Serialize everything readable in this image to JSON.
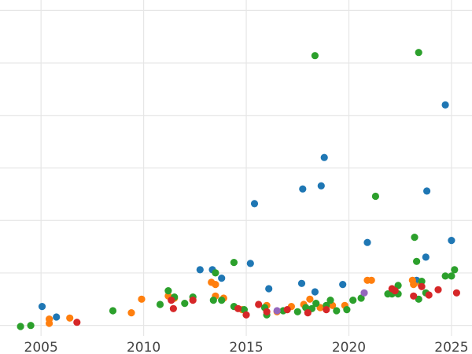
{
  "chart_data": {
    "type": "scatter",
    "title": "",
    "xlabel": "",
    "ylabel": "",
    "xlim": [
      2003.0,
      2026.0
    ],
    "ylim": [
      -1.0,
      31.0
    ],
    "x_ticks": [
      2005,
      2010,
      2015,
      2020,
      2025
    ],
    "x_tick_labels": [
      "2005",
      "2010",
      "2015",
      "2020",
      "2025"
    ],
    "y_gridlines": [
      0,
      5,
      10,
      15,
      20,
      25,
      30
    ],
    "y_tick_labels_visible": false,
    "grid": true,
    "legend": "none",
    "colors": {
      "blue": "#1f77b4",
      "orange": "#ff7f0e",
      "green": "#2ca02c",
      "red": "#d62728",
      "purple": "#9467bd"
    },
    "series": [
      {
        "color": "#1f77b4",
        "points": [
          [
            2005.05,
            1.8
          ],
          [
            2005.75,
            0.8
          ],
          [
            2012.75,
            5.3
          ],
          [
            2013.35,
            5.3
          ],
          [
            2013.8,
            4.5
          ],
          [
            2015.2,
            5.9
          ],
          [
            2015.4,
            11.6
          ],
          [
            2016.1,
            3.5
          ],
          [
            2017.7,
            4.0
          ],
          [
            2017.75,
            13.0
          ],
          [
            2018.35,
            3.2
          ],
          [
            2018.65,
            13.3
          ],
          [
            2018.8,
            16.0
          ],
          [
            2019.7,
            3.9
          ],
          [
            2020.9,
            7.9
          ],
          [
            2023.3,
            4.3
          ],
          [
            2023.75,
            6.5
          ],
          [
            2023.8,
            12.8
          ],
          [
            2024.7,
            21.0
          ],
          [
            2025.0,
            8.1
          ]
        ]
      },
      {
        "color": "#ff7f0e",
        "points": [
          [
            2005.4,
            0.2
          ],
          [
            2005.4,
            0.6
          ],
          [
            2006.4,
            0.7
          ],
          [
            2009.4,
            1.2
          ],
          [
            2009.9,
            2.5
          ],
          [
            2011.2,
            2.8
          ],
          [
            2011.5,
            2.6
          ],
          [
            2013.3,
            4.1
          ],
          [
            2013.5,
            3.9
          ],
          [
            2013.5,
            2.8
          ],
          [
            2013.9,
            2.6
          ],
          [
            2014.8,
            1.5
          ],
          [
            2016.0,
            1.9
          ],
          [
            2016.5,
            1.3
          ],
          [
            2017.2,
            1.8
          ],
          [
            2017.8,
            2.0
          ],
          [
            2018.1,
            2.5
          ],
          [
            2018.6,
            1.7
          ],
          [
            2019.2,
            1.9
          ],
          [
            2019.8,
            1.9
          ],
          [
            2020.9,
            4.3
          ],
          [
            2021.1,
            4.3
          ],
          [
            2023.1,
            4.3
          ],
          [
            2023.15,
            3.9
          ],
          [
            2023.5,
            3.9
          ]
        ]
      },
      {
        "color": "#2ca02c",
        "points": [
          [
            2004.0,
            -0.1
          ],
          [
            2004.5,
            0.0
          ],
          [
            2008.5,
            1.4
          ],
          [
            2010.8,
            2.0
          ],
          [
            2011.2,
            3.3
          ],
          [
            2011.5,
            2.7
          ],
          [
            2012.0,
            2.1
          ],
          [
            2012.4,
            2.7
          ],
          [
            2013.4,
            2.4
          ],
          [
            2013.5,
            5.0
          ],
          [
            2013.8,
            2.4
          ],
          [
            2014.4,
            6.0
          ],
          [
            2014.4,
            1.8
          ],
          [
            2014.9,
            1.5
          ],
          [
            2015.9,
            1.7
          ],
          [
            2016.0,
            1.0
          ],
          [
            2016.8,
            1.4
          ],
          [
            2017.5,
            1.3
          ],
          [
            2017.9,
            1.7
          ],
          [
            2018.2,
            1.6
          ],
          [
            2018.35,
            25.7
          ],
          [
            2018.4,
            2.1
          ],
          [
            2018.9,
            1.9
          ],
          [
            2019.1,
            2.4
          ],
          [
            2019.4,
            1.4
          ],
          [
            2019.9,
            1.5
          ],
          [
            2020.2,
            2.4
          ],
          [
            2020.6,
            2.6
          ],
          [
            2021.3,
            12.3
          ],
          [
            2021.9,
            3.0
          ],
          [
            2022.1,
            3.0
          ],
          [
            2022.4,
            3.8
          ],
          [
            2022.4,
            3.0
          ],
          [
            2023.2,
            8.4
          ],
          [
            2023.3,
            6.1
          ],
          [
            2023.4,
            26.0
          ],
          [
            2023.4,
            2.5
          ],
          [
            2023.55,
            4.2
          ],
          [
            2023.75,
            3.1
          ],
          [
            2024.7,
            4.7
          ],
          [
            2025.0,
            4.7
          ],
          [
            2025.15,
            5.3
          ]
        ]
      },
      {
        "color": "#d62728",
        "points": [
          [
            2006.75,
            0.3
          ],
          [
            2011.35,
            2.4
          ],
          [
            2011.45,
            1.6
          ],
          [
            2012.4,
            2.4
          ],
          [
            2014.6,
            1.6
          ],
          [
            2015.0,
            1.0
          ],
          [
            2015.6,
            2.0
          ],
          [
            2016.0,
            1.3
          ],
          [
            2017.0,
            1.5
          ],
          [
            2018.0,
            1.2
          ],
          [
            2018.9,
            1.5
          ],
          [
            2022.1,
            3.5
          ],
          [
            2022.25,
            3.3
          ],
          [
            2023.15,
            2.8
          ],
          [
            2023.55,
            3.7
          ],
          [
            2023.9,
            2.9
          ],
          [
            2024.35,
            3.4
          ],
          [
            2025.25,
            3.1
          ]
        ]
      },
      {
        "color": "#9467bd",
        "points": [
          [
            2016.5,
            1.4
          ],
          [
            2020.75,
            3.1
          ]
        ]
      }
    ]
  }
}
